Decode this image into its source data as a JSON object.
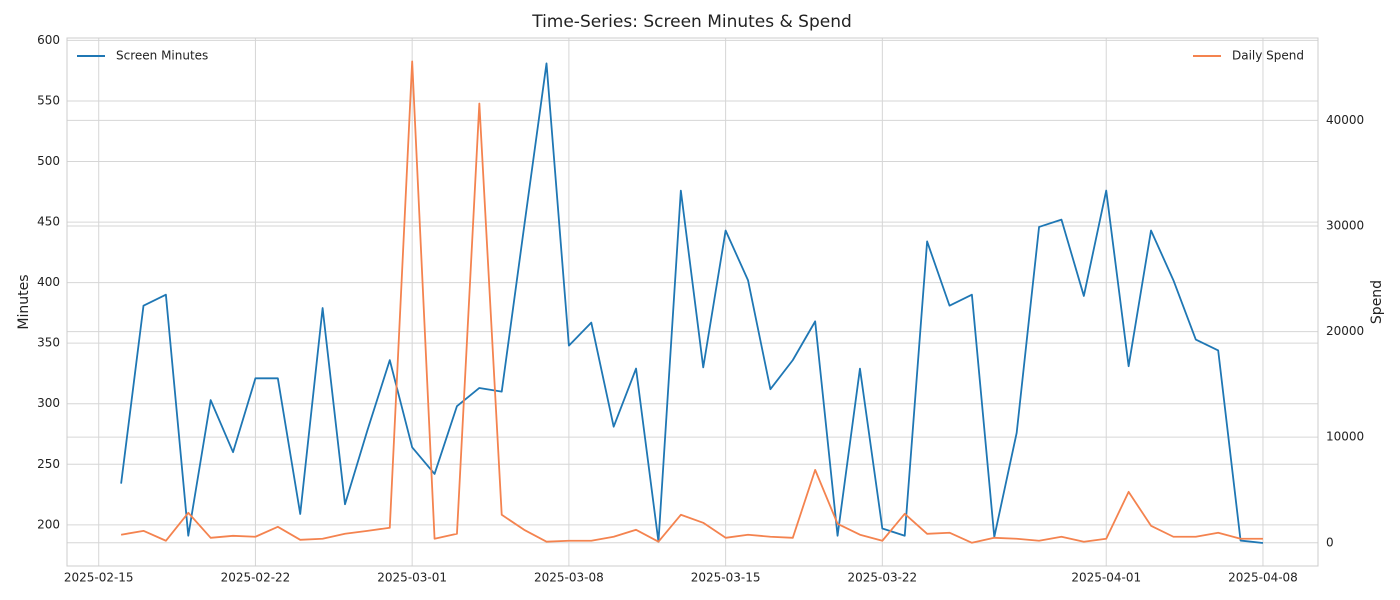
{
  "chart_data": {
    "type": "line",
    "title": "Time-Series: Screen Minutes & Spend",
    "ylabel": "Minutes",
    "y2label": "Spend",
    "x": [
      "2025-02-16",
      "2025-02-17",
      "2025-02-18",
      "2025-02-19",
      "2025-02-20",
      "2025-02-21",
      "2025-02-22",
      "2025-02-23",
      "2025-02-24",
      "2025-02-25",
      "2025-02-26",
      "2025-02-27",
      "2025-02-28",
      "2025-03-01",
      "2025-03-02",
      "2025-03-03",
      "2025-03-04",
      "2025-03-05",
      "2025-03-06",
      "2025-03-07",
      "2025-03-08",
      "2025-03-09",
      "2025-03-10",
      "2025-03-11",
      "2025-03-12",
      "2025-03-13",
      "2025-03-14",
      "2025-03-15",
      "2025-03-16",
      "2025-03-17",
      "2025-03-18",
      "2025-03-19",
      "2025-03-20",
      "2025-03-21",
      "2025-03-22",
      "2025-03-23",
      "2025-03-24",
      "2025-03-25",
      "2025-03-26",
      "2025-03-27",
      "2025-03-28",
      "2025-03-29",
      "2025-03-30",
      "2025-03-31",
      "2025-04-01",
      "2025-04-02",
      "2025-04-03",
      "2025-04-04",
      "2025-04-05",
      "2025-04-06",
      "2025-04-07",
      "2025-04-08"
    ],
    "series": [
      {
        "name": "Screen Minutes",
        "color": "#1f77b4",
        "axis": "y",
        "legend": "upper left",
        "values": [
          234,
          381,
          390,
          191,
          303,
          260,
          321,
          321,
          209,
          379,
          217,
          278,
          336,
          264,
          242,
          298,
          313,
          310,
          446,
          581,
          348,
          367,
          281,
          329,
          186,
          476,
          330,
          443,
          402,
          312,
          336,
          368,
          191,
          329,
          197,
          191,
          434,
          381,
          390,
          190,
          276,
          446,
          452,
          389,
          476,
          331,
          443,
          402,
          353,
          344,
          187,
          185
        ]
      },
      {
        "name": "Daily Spend",
        "color": "#f4834f",
        "axis": "y2",
        "legend": "upper right",
        "values": [
          760,
          1130,
          190,
          2840,
          470,
          660,
          570,
          1510,
          280,
          380,
          850,
          1130,
          1420,
          45580,
          380,
          850,
          41600,
          2650,
          1230,
          100,
          190,
          190,
          570,
          1230,
          100,
          2650,
          1890,
          470,
          760,
          570,
          470,
          6900,
          1800,
          760,
          190,
          2740,
          850,
          950,
          0,
          470,
          380,
          190,
          570,
          100,
          380,
          4820,
          1610,
          570,
          570,
          950,
          380,
          380
        ]
      }
    ],
    "xlim": [
      "2025-02-13T14:00",
      "2025-04-10T11:00"
    ],
    "xticks": [
      "2025-02-15",
      "2025-02-22",
      "2025-03-01",
      "2025-03-08",
      "2025-03-15",
      "2025-03-22",
      "2025-04-01",
      "2025-04-08"
    ],
    "ylim": [
      166,
      602
    ],
    "yticks": [
      200,
      250,
      300,
      350,
      400,
      450,
      500,
      550,
      600
    ],
    "y2lim": [
      -2200,
      47800
    ],
    "y2ticks": [
      0,
      10000,
      20000,
      30000,
      40000
    ],
    "grid": true
  }
}
